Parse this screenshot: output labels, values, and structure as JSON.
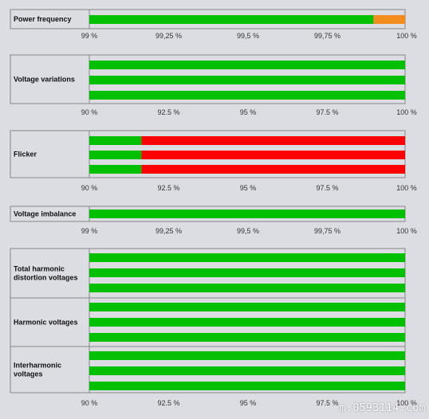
{
  "colors": {
    "pass": "#00c000",
    "fail": "#ff0000",
    "warn": "#f28c1c"
  },
  "watermark": "m.0593114.com",
  "chart_data": [
    {
      "type": "bar",
      "orientation": "horizontal-stacked",
      "xlim": [
        99,
        100
      ],
      "ticks": [
        "99 %",
        "99,25 %",
        "99,5 %",
        "99,75 %",
        "100 %"
      ],
      "panels": [
        {
          "label": "Power frequency",
          "bars": [
            [
              {
                "to": 99.9,
                "color": "pass"
              },
              {
                "to": 100,
                "color": "warn"
              }
            ]
          ]
        }
      ]
    },
    {
      "type": "bar",
      "orientation": "horizontal-stacked",
      "xlim": [
        90,
        100
      ],
      "ticks": [
        "90 %",
        "92.5 %",
        "95 %",
        "97.5 %",
        "100 %"
      ],
      "panels": [
        {
          "label": "Voltage variations",
          "bars": [
            [
              {
                "to": 100,
                "color": "pass"
              }
            ],
            [
              {
                "to": 100,
                "color": "pass"
              }
            ],
            [
              {
                "to": 100,
                "color": "pass"
              }
            ]
          ]
        }
      ]
    },
    {
      "type": "bar",
      "orientation": "horizontal-stacked",
      "xlim": [
        90,
        100
      ],
      "ticks": [
        "90 %",
        "92.5 %",
        "95 %",
        "97.5 %",
        "100 %"
      ],
      "panels": [
        {
          "label": "Flicker",
          "bars": [
            [
              {
                "to": 91.65,
                "color": "pass"
              },
              {
                "to": 100,
                "color": "fail"
              }
            ],
            [
              {
                "to": 91.65,
                "color": "pass"
              },
              {
                "to": 100,
                "color": "fail"
              }
            ],
            [
              {
                "to": 91.65,
                "color": "pass"
              },
              {
                "to": 100,
                "color": "fail"
              }
            ]
          ]
        }
      ]
    },
    {
      "type": "bar",
      "orientation": "horizontal-stacked",
      "xlim": [
        99,
        100
      ],
      "ticks": [
        "99 %",
        "99,25 %",
        "99,5 %",
        "99,75 %",
        "100 %"
      ],
      "panels": [
        {
          "label": "Voltage imbalance",
          "bars": [
            [
              {
                "to": 100,
                "color": "pass"
              }
            ]
          ]
        }
      ]
    },
    {
      "type": "bar",
      "orientation": "horizontal-stacked",
      "xlim": [
        90,
        100
      ],
      "ticks": [
        "90 %",
        "92.5 %",
        "95 %",
        "97.5 %",
        "100 %"
      ],
      "panels": [
        {
          "label": "Total harmonic distortion voltages",
          "label_lines": [
            "Total harmonic",
            "distortion voltages"
          ],
          "bars": [
            [
              {
                "to": 100,
                "color": "pass"
              }
            ],
            [
              {
                "to": 100,
                "color": "pass"
              }
            ],
            [
              {
                "to": 100,
                "color": "pass"
              }
            ]
          ]
        },
        {
          "label": "Harmonic voltages",
          "label_lines": [
            "Harmonic voltages"
          ],
          "bars": [
            [
              {
                "to": 100,
                "color": "pass"
              }
            ],
            [
              {
                "to": 100,
                "color": "pass"
              }
            ],
            [
              {
                "to": 100,
                "color": "pass"
              }
            ]
          ]
        },
        {
          "label": "Interharmonic voltages",
          "label_lines": [
            "Interharmonic",
            "voltages"
          ],
          "bars": [
            [
              {
                "to": 100,
                "color": "pass"
              }
            ],
            [
              {
                "to": 100,
                "color": "pass"
              }
            ],
            [
              {
                "to": 100,
                "color": "pass"
              }
            ]
          ]
        }
      ]
    }
  ]
}
